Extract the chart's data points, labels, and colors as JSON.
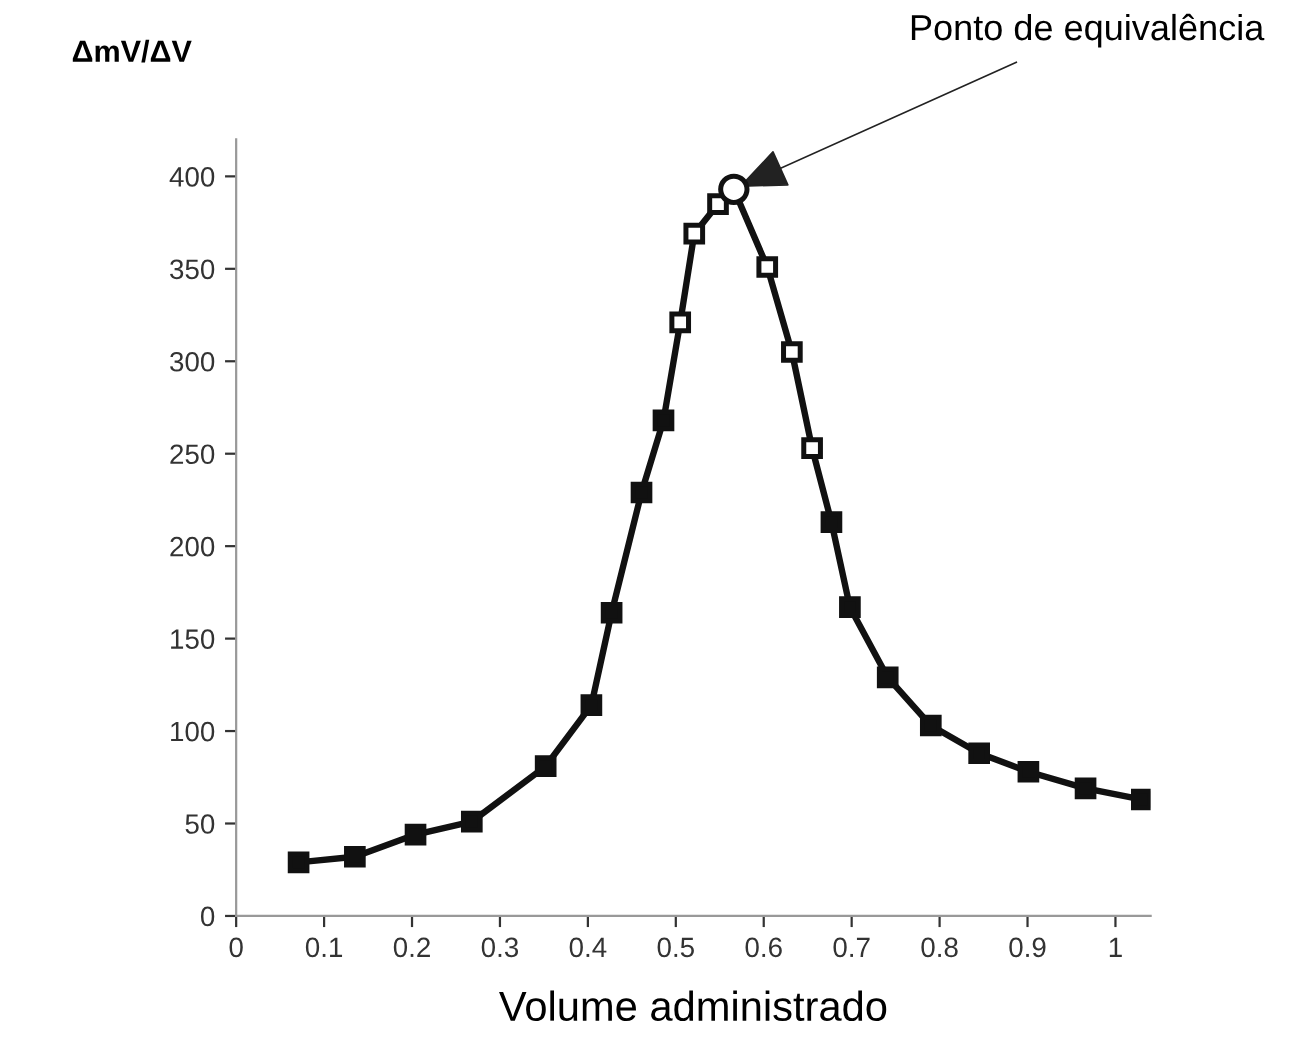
{
  "chart_data": {
    "type": "line",
    "xlabel": "Volume administrado",
    "ylabel": "ΔmV/ΔV",
    "annotations": [
      {
        "text": "Ponto de equivalência",
        "x": 0.566,
        "y": 393
      }
    ],
    "series": [
      {
        "color": "#111111",
        "marker": "square",
        "x": [
          0.071,
          0.135,
          0.204,
          0.268,
          0.352,
          0.404,
          0.427,
          0.461,
          0.486,
          0.505,
          0.521,
          0.548,
          0.566,
          0.604,
          0.632,
          0.655,
          0.677,
          0.698,
          0.741,
          0.79,
          0.845,
          0.901,
          0.966,
          1.03
        ],
        "values": [
          29,
          32,
          44,
          51,
          81,
          114,
          164,
          229,
          268,
          321,
          369,
          385,
          393,
          351,
          305,
          253,
          213,
          167,
          129,
          103,
          88,
          78,
          69,
          63
        ],
        "colors": [
          "#111111",
          "#111111",
          "#111111",
          "#111111",
          "#111111",
          "#111111",
          "#111111",
          "#111111",
          "#111111",
          "#ffffff",
          "#ffffff",
          "#ffffff",
          null,
          "#ffffff",
          "#ffffff",
          "#ffffff",
          "#111111",
          "#111111",
          "#111111",
          "#111111",
          "#111111",
          "#111111",
          "#111111",
          "#111111"
        ]
      },
      {
        "type": "scatter",
        "color": "#ffffff",
        "marker": "circle",
        "x": [
          0.566
        ],
        "values": [
          393
        ]
      }
    ],
    "xlim": [
      0,
      1.04
    ],
    "ylim": [
      0,
      420
    ],
    "xticks": [
      0,
      0.1,
      0.2,
      0.3,
      0.4,
      0.5,
      0.6,
      0.7,
      0.8,
      0.9,
      1
    ],
    "yticks": [
      0,
      50,
      100,
      150,
      200,
      250,
      300,
      350,
      400
    ],
    "grid": false,
    "legend": false
  }
}
